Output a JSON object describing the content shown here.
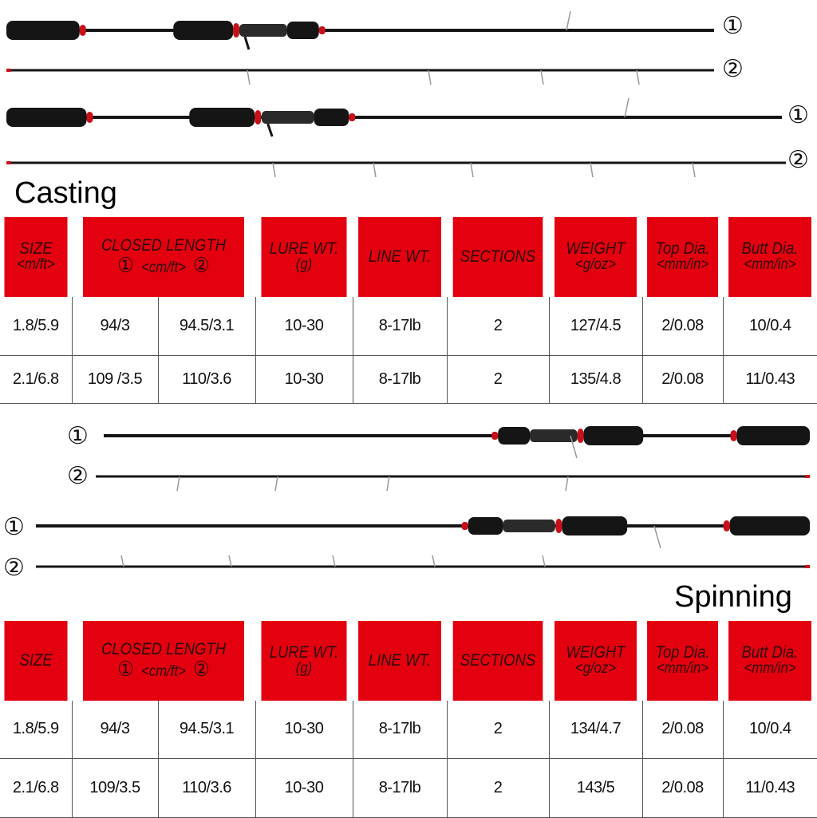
{
  "section_markers": {
    "one": "①",
    "two": "②"
  },
  "casting": {
    "title": "Casting",
    "headers": {
      "size": "SIZE",
      "size_unit": "<m/ft>",
      "closed_length": "CLOSED LENGTH",
      "closed_length_unit": "<cm/ft>",
      "lure_wt": "LURE WT.",
      "lure_unit": "(g)",
      "line_wt": "LINE WT.",
      "sections": "SECTIONS",
      "weight": "WEIGHT",
      "weight_unit": "<g/oz>",
      "top_dia": "Top Dia.",
      "top_unit": "<mm/in>",
      "butt_dia": "Butt Dia.",
      "butt_unit": "<mm/in>"
    },
    "rows": [
      [
        "1.8/5.9",
        "94/3",
        "94.5/3.1",
        "10-30",
        "8-17lb",
        "2",
        "127/4.5",
        "2/0.08",
        "10/0.4"
      ],
      [
        "2.1/6.8",
        "109 /3.5",
        "110/3.6",
        "10-30",
        "8-17lb",
        "2",
        "135/4.8",
        "2/0.08",
        "11/0.43"
      ]
    ]
  },
  "spinning": {
    "title": "Spinning",
    "headers": {
      "size": "SIZE",
      "closed_length": "CLOSED LENGTH",
      "closed_length_unit": "<cm/ft>",
      "lure_wt": "LURE WT.",
      "lure_unit": "(g)",
      "line_wt": "LINE WT.",
      "sections": "SECTIONS",
      "weight": "WEIGHT",
      "weight_unit": "<g/oz>",
      "top_dia": "Top Dia.",
      "top_unit": "<mm/in>",
      "butt_dia": "Butt Dia.",
      "butt_unit": "<mm/in>"
    },
    "rows": [
      [
        "1.8/5.9",
        "94/3",
        "94.5/3.1",
        "10-30",
        "8-17lb",
        "2",
        "134/4.7",
        "2/0.08",
        "10/0.4"
      ],
      [
        "2.1/6.8",
        "109/3.5",
        "110/3.6",
        "10-30",
        "8-17lb",
        "2",
        "143/5",
        "2/0.08",
        "11/0.43"
      ]
    ]
  },
  "colors": {
    "header_red": "#e3000f",
    "accent_red": "#c8101a",
    "rod_black": "#151515"
  }
}
